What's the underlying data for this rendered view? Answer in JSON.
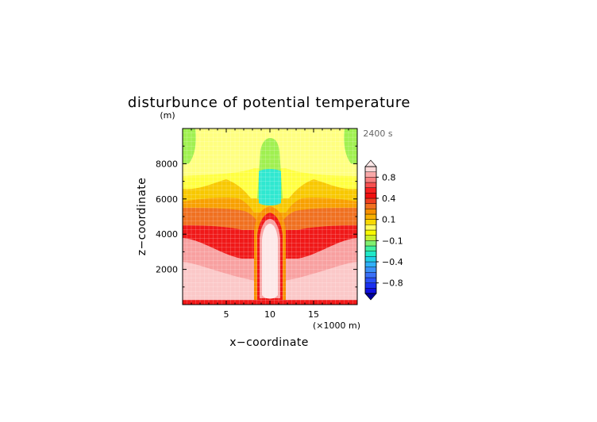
{
  "chart_data": {
    "type": "heatmap",
    "title": "disturbunce of potential temperature",
    "ylabel": "z−coordinate",
    "y_unit": "(m)",
    "xlabel": "x−coordinate",
    "x_unit": "(×1000 m)",
    "time_label": "2400 s",
    "xlim": [
      0,
      20
    ],
    "ylim": [
      0,
      10000
    ],
    "x_ticks": [
      5,
      10,
      15
    ],
    "y_ticks": [
      2000,
      4000,
      6000,
      8000
    ],
    "colorbar": {
      "levels": [
        -1.0,
        -0.9,
        -0.8,
        -0.7,
        -0.6,
        -0.5,
        -0.4,
        -0.3,
        -0.2,
        -0.15,
        -0.1,
        -0.05,
        0,
        0.05,
        0.1,
        0.15,
        0.2,
        0.3,
        0.4,
        0.5,
        0.6,
        0.7,
        0.8,
        0.9,
        1.0
      ],
      "labels": [
        "0.8",
        "0.4",
        "0.1",
        "−0.1",
        "−0.4",
        "−0.8"
      ],
      "label_values": [
        0.8,
        0.4,
        0.1,
        -0.1,
        -0.4,
        -0.8
      ],
      "colors": [
        "#1010e0",
        "#1a30f0",
        "#2a50f8",
        "#3a70f8",
        "#3a90f8",
        "#30b0f8",
        "#20d0e8",
        "#20e8c8",
        "#40f0a0",
        "#80f070",
        "#c8f030",
        "#f8f800",
        "#ffff60",
        "#f8d800",
        "#f8b000",
        "#f89000",
        "#f07020",
        "#f04020",
        "#f01010",
        "#f82020",
        "#f85050",
        "#f88080",
        "#f8a8a8",
        "#fcd8d8"
      ]
    }
  }
}
